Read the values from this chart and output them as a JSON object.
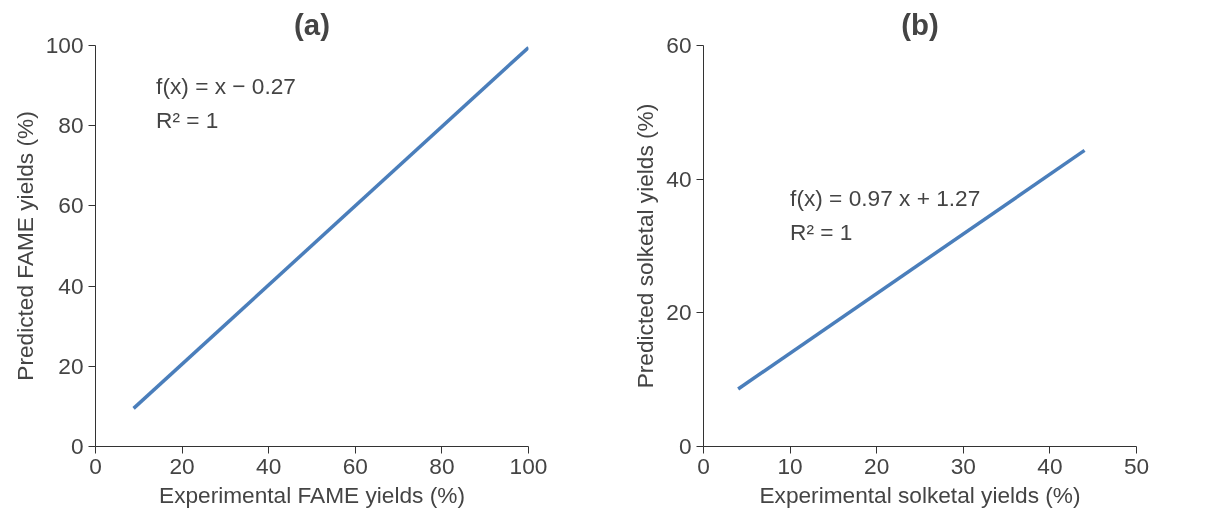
{
  "chart_data": [
    {
      "type": "line",
      "title": "(a)",
      "xlabel": "Experimental FAME yields (%)",
      "ylabel": "Predicted FAME yields (%)",
      "annotations": [
        "f(x) = x − 0.27",
        "R² = 1"
      ],
      "x": [
        8.8,
        100
      ],
      "series": [
        {
          "color": "#4a7ebb",
          "values": [
            9.5,
            99.5
          ]
        }
      ],
      "xlim": [
        0,
        100
      ],
      "xticks": [
        0,
        20,
        40,
        60,
        80,
        100
      ],
      "ylim": [
        0,
        100
      ],
      "yticks": [
        0,
        20,
        40,
        60,
        80,
        100
      ],
      "grid": false,
      "marker": "none",
      "line_style": "solid"
    },
    {
      "type": "line",
      "title": "(b)",
      "xlabel": "Experimental solketal yields (%)",
      "ylabel": "Predicted solketal yields (%)",
      "annotations": [
        "f(x) = 0.97 x + 1.27",
        "R² = 1"
      ],
      "x": [
        4,
        44
      ],
      "series": [
        {
          "color": "#4a7ebb",
          "values": [
            8.6,
            44.3
          ]
        }
      ],
      "xlim": [
        0,
        50
      ],
      "xticks": [
        0,
        10,
        20,
        30,
        40,
        50
      ],
      "ylim": [
        0,
        60
      ],
      "yticks": [
        0,
        20,
        40,
        60
      ],
      "grid": false,
      "marker": "none",
      "line_style": "solid"
    }
  ]
}
